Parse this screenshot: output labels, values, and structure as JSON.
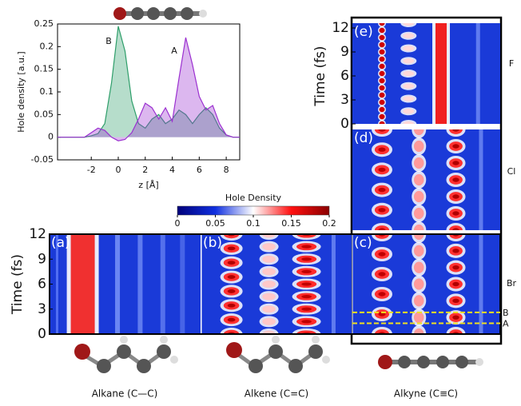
{
  "chart_data": [
    {
      "type": "area",
      "xlabel": "z [Å]",
      "ylabel": "Hole density [a.u.]",
      "annotations": [
        "A",
        "B"
      ],
      "x": [
        -4.5,
        -4,
        -3.5,
        -3,
        -2.5,
        -2,
        -1.5,
        -1,
        -0.5,
        0,
        0.5,
        1,
        1.5,
        2,
        2.5,
        3,
        3.5,
        4,
        4.5,
        5,
        5.5,
        6,
        6.5,
        7,
        7.5,
        8,
        8.5,
        9
      ],
      "series": [
        {
          "name": "B",
          "color": "#2e9e6a",
          "values": [
            0,
            0,
            0,
            0,
            0,
            0.003,
            0.008,
            0.03,
            0.12,
            0.245,
            0.19,
            0.08,
            0.03,
            0.02,
            0.04,
            0.05,
            0.03,
            0.04,
            0.06,
            0.05,
            0.03,
            0.05,
            0.065,
            0.05,
            0.02,
            0.005,
            0,
            0
          ]
        },
        {
          "name": "A",
          "color": "#9b30d0",
          "values": [
            0,
            0,
            0,
            0,
            0,
            0.01,
            0.02,
            0.015,
            0,
            -0.008,
            -0.005,
            0.01,
            0.04,
            0.075,
            0.065,
            0.04,
            0.065,
            0.035,
            0.13,
            0.22,
            0.16,
            0.09,
            0.06,
            0.07,
            0.03,
            0.005,
            0,
            0
          ]
        }
      ],
      "xlim": [
        -4.5,
        9
      ],
      "xticks": [
        -2,
        0,
        2,
        4,
        6,
        8
      ],
      "ylim": [
        -0.05,
        0.25
      ],
      "yticks": [
        -0.05,
        0,
        0.05,
        0.1,
        0.15,
        0.2,
        0.25
      ]
    },
    {
      "type": "heatmap",
      "colorbar_title": "Hole Density",
      "colorbar_lim": [
        0,
        0.2
      ],
      "colorbar_ticks": [
        0,
        0.05,
        0.1,
        0.15,
        0.2
      ],
      "colormap": [
        "#00007a",
        "#1030e0",
        "#ffffff",
        "#ff1010",
        "#8a0000"
      ],
      "ylabel": "Time (fs)",
      "ylim": [
        0,
        12
      ],
      "yticks": [
        0,
        3,
        6,
        9,
        12
      ],
      "panels": [
        "(a)",
        "(b)",
        "(c)",
        "(d)",
        "(e)"
      ],
      "captions": [
        "Alkane (C—C)",
        "Alkene (C=C)",
        "Alkyne (C≡C)"
      ],
      "halogens": [
        {
          "name": "F",
          "color": "#6a8fd8"
        },
        {
          "name": "Cl",
          "color": "#22c022"
        },
        {
          "name": "Br",
          "color": "#d04848"
        }
      ],
      "markers": [
        {
          "label": "B",
          "time": 2.6
        },
        {
          "label": "A",
          "time": 1.3
        }
      ],
      "marker_color": "#f0e020"
    }
  ]
}
